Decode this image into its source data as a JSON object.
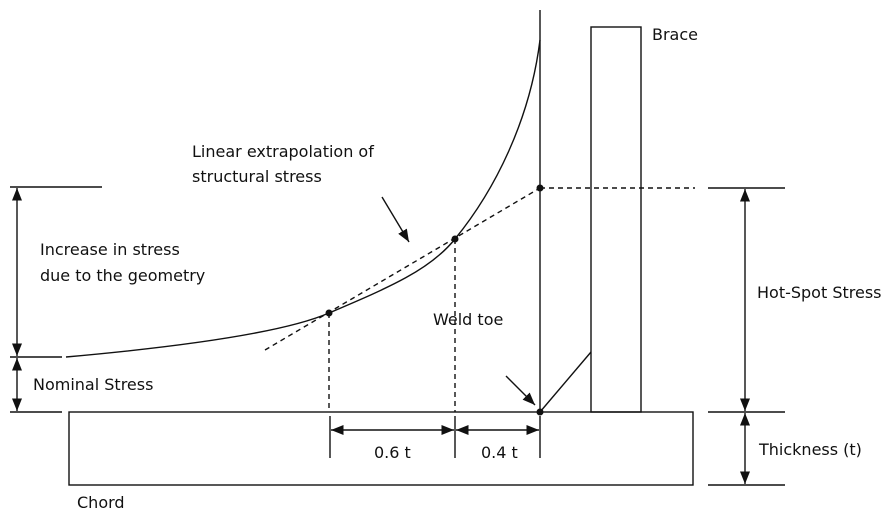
{
  "labels": {
    "brace": "Brace",
    "extrapolation": [
      "Linear extrapolation of",
      "structural stress"
    ],
    "increase": [
      "Increase in stress",
      "due to the geometry"
    ],
    "nominal": "Nominal Stress",
    "hot_spot": "Hot-Spot Stress",
    "weld_toe": "Weld toe",
    "dim_06": "0.6 t",
    "dim_04": "0.4 t",
    "thickness": "Thickness (t)",
    "chord": "Chord"
  }
}
